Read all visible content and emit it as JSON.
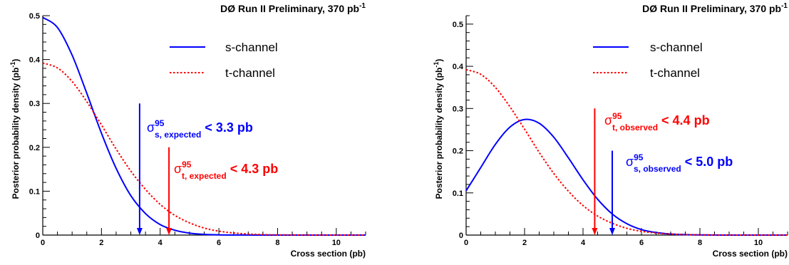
{
  "chart_data": [
    {
      "type": "line",
      "title": "DØ Run II Preliminary, 370 pb",
      "title_superscript": "-1",
      "xlabel": "Cross section (pb)",
      "ylabel": "Posterior probability density (pb",
      "ylabel_superscript": "-1",
      "ylabel_close": ")",
      "xlim": [
        0,
        11
      ],
      "ylim": [
        0,
        0.5
      ],
      "xticks": [
        0,
        2,
        4,
        6,
        8,
        10
      ],
      "yticks": [
        0,
        0.1,
        0.2,
        0.3,
        0.4,
        0.5
      ],
      "xtick_labels": [
        "0",
        "2",
        "4",
        "6",
        "8",
        "10"
      ],
      "ytick_labels": [
        "0",
        "0.1",
        "0.2",
        "0.3",
        "0.4",
        "0.5"
      ],
      "legend_position": "top-right",
      "series": [
        {
          "name": "s-channel",
          "color": "#0000ff",
          "style": "solid",
          "x": [
            0,
            0.5,
            1,
            1.5,
            2,
            2.5,
            3,
            3.5,
            4,
            4.5,
            5,
            5.5,
            6,
            6.5,
            7,
            7.5,
            8,
            9,
            10,
            11
          ],
          "y": [
            0.496,
            0.473,
            0.41,
            0.323,
            0.232,
            0.152,
            0.09,
            0.049,
            0.024,
            0.011,
            0.0045,
            0.0017,
            0.0006,
            0.0002,
            0.0001,
            0,
            0,
            0,
            0,
            0
          ]
        },
        {
          "name": "t-channel",
          "color": "#ff0000",
          "style": "dotted",
          "x": [
            0,
            0.5,
            1,
            1.5,
            2,
            2.5,
            3,
            3.5,
            4,
            4.5,
            5,
            5.5,
            6,
            6.5,
            7,
            7.5,
            8,
            9,
            10,
            11
          ],
          "y": [
            0.392,
            0.381,
            0.35,
            0.304,
            0.251,
            0.196,
            0.146,
            0.104,
            0.07,
            0.045,
            0.028,
            0.016,
            0.009,
            0.0048,
            0.0024,
            0.0011,
            0.0005,
            0.0001,
            0,
            0
          ]
        }
      ],
      "annotations": [
        {
          "sym": "σ",
          "sup": "95",
          "sub": "s, expected",
          "text": "< 3.3 pb",
          "x": 3.3,
          "arrow_top": 0.3,
          "color": "#0000ff"
        },
        {
          "sym": "σ",
          "sup": "95",
          "sub": "t, expected",
          "text": "< 4.3 pb",
          "x": 4.3,
          "arrow_top": 0.2,
          "color": "#ff0000"
        }
      ]
    },
    {
      "type": "line",
      "title": "DØ Run II Preliminary, 370 pb",
      "title_superscript": "-1",
      "xlabel": "Cross section (pb)",
      "ylabel": "Posterior probability density (pb",
      "ylabel_superscript": "-1",
      "ylabel_close": ")",
      "xlim": [
        0,
        11
      ],
      "ylim": [
        0,
        0.52
      ],
      "xticks": [
        0,
        2,
        4,
        6,
        8,
        10
      ],
      "yticks": [
        0,
        0.1,
        0.2,
        0.3,
        0.4,
        0.5
      ],
      "xtick_labels": [
        "0",
        "2",
        "4",
        "6",
        "8",
        "10"
      ],
      "ytick_labels": [
        "0",
        "0.1",
        "0.2",
        "0.3",
        "0.4",
        "0.5"
      ],
      "legend_position": "top-right",
      "series": [
        {
          "name": "s-channel",
          "color": "#0000ff",
          "style": "solid",
          "x": [
            0,
            0.5,
            1,
            1.5,
            2,
            2.5,
            3,
            3.5,
            4,
            4.5,
            5,
            5.5,
            6,
            6.5,
            7,
            7.5,
            8,
            9,
            10,
            11
          ],
          "y": [
            0.105,
            0.16,
            0.215,
            0.256,
            0.274,
            0.265,
            0.232,
            0.183,
            0.131,
            0.085,
            0.05,
            0.027,
            0.013,
            0.006,
            0.0025,
            0.001,
            0.0004,
            0,
            0,
            0
          ]
        },
        {
          "name": "t-channel",
          "color": "#ff0000",
          "style": "dotted",
          "x": [
            0,
            0.5,
            1,
            1.5,
            2,
            2.5,
            3,
            3.5,
            4,
            4.5,
            5,
            5.5,
            6,
            6.5,
            7,
            7.5,
            8,
            9,
            10,
            11
          ],
          "y": [
            0.392,
            0.381,
            0.35,
            0.304,
            0.251,
            0.196,
            0.146,
            0.104,
            0.07,
            0.045,
            0.028,
            0.016,
            0.009,
            0.0048,
            0.0024,
            0.0011,
            0.0005,
            0.0001,
            0,
            0
          ]
        }
      ],
      "annotations": [
        {
          "sym": "σ",
          "sup": "95",
          "sub": "t, observed",
          "text": "< 4.4 pb",
          "x": 4.4,
          "arrow_top": 0.3,
          "color": "#ff0000"
        },
        {
          "sym": "σ",
          "sup": "95",
          "sub": "s, observed",
          "text": "< 5.0 pb",
          "x": 5.0,
          "arrow_top": 0.2,
          "color": "#0000ff"
        }
      ]
    }
  ]
}
